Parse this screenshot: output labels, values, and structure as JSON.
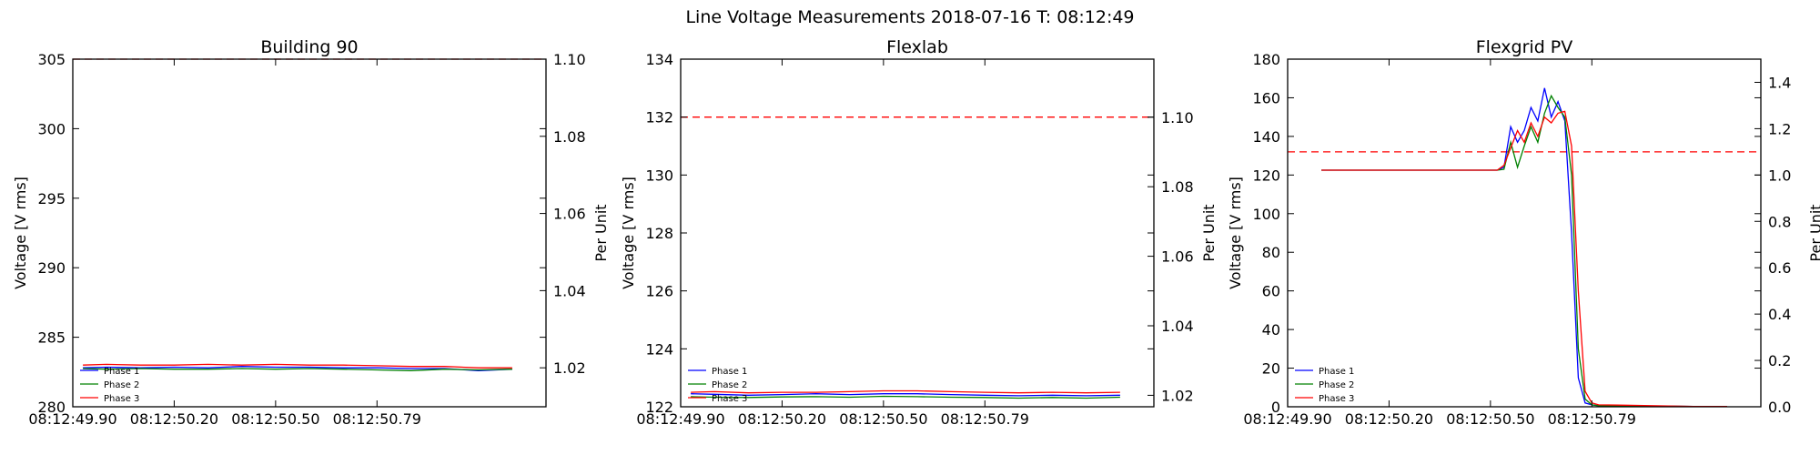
{
  "suptitle": "Line Voltage Measurements 2018-07-16 T: 08:12:49",
  "chart_data": [
    {
      "type": "line",
      "title": "Building 90",
      "xlabel": "",
      "ylabel": "Voltage [V rms]",
      "ylabel_right": "Per Unit",
      "x_tick_labels": [
        "08:12:49.90",
        "08:12:50.20",
        "08:12:50.50",
        "08:12:50.79"
      ],
      "xlim": [
        0,
        1.4
      ],
      "x_ticks": [
        0,
        0.3,
        0.6,
        0.9
      ],
      "ylim": [
        280,
        305
      ],
      "y_ticks": [
        280,
        285,
        290,
        295,
        300,
        305
      ],
      "ylim_right": [
        1.0099,
        1.1
      ],
      "y_ticks_right": [
        1.02,
        1.04,
        1.06,
        1.08,
        1.1
      ],
      "threshold": {
        "value": 305,
        "style": "dashed",
        "color": "#ff0000"
      },
      "legend": "lower-left",
      "series": [
        {
          "name": "Phase 1",
          "color": "#0000ff",
          "x": [
            0.03,
            0.1,
            0.2,
            0.3,
            0.4,
            0.5,
            0.6,
            0.7,
            0.8,
            0.9,
            1.0,
            1.1,
            1.2,
            1.3
          ],
          "y": [
            282.8,
            282.85,
            282.8,
            282.85,
            282.8,
            282.9,
            282.85,
            282.85,
            282.8,
            282.8,
            282.75,
            282.75,
            282.6,
            282.7
          ]
        },
        {
          "name": "Phase 2",
          "color": "#008000",
          "x": [
            0.03,
            0.1,
            0.2,
            0.3,
            0.4,
            0.5,
            0.6,
            0.7,
            0.8,
            0.9,
            1.0,
            1.1,
            1.2,
            1.3
          ],
          "y": [
            282.75,
            282.7,
            282.75,
            282.7,
            282.7,
            282.75,
            282.7,
            282.75,
            282.7,
            282.65,
            282.6,
            282.7,
            282.65,
            282.7
          ]
        },
        {
          "name": "Phase 3",
          "color": "#ff0000",
          "x": [
            0.03,
            0.1,
            0.2,
            0.3,
            0.4,
            0.5,
            0.6,
            0.7,
            0.8,
            0.9,
            1.0,
            1.1,
            1.2,
            1.3
          ],
          "y": [
            283.0,
            283.05,
            283.0,
            283.0,
            283.05,
            283.0,
            283.05,
            283.0,
            283.0,
            282.95,
            282.9,
            282.9,
            282.8,
            282.8
          ]
        }
      ]
    },
    {
      "type": "line",
      "title": "Flexlab",
      "xlabel": "",
      "ylabel": "Voltage [V rms]",
      "ylabel_right": "Per Unit",
      "x_tick_labels": [
        "08:12:49.90",
        "08:12:50.20",
        "08:12:50.50",
        "08:12:50.79"
      ],
      "xlim": [
        0,
        1.4
      ],
      "x_ticks": [
        0,
        0.3,
        0.6,
        0.9
      ],
      "ylim": [
        122,
        134
      ],
      "y_ticks": [
        122,
        124,
        126,
        128,
        130,
        132,
        134
      ],
      "ylim_right": [
        1.0167,
        1.1167
      ],
      "y_ticks_right": [
        1.02,
        1.04,
        1.06,
        1.08,
        1.1
      ],
      "threshold": {
        "value": 132,
        "style": "dashed",
        "color": "#ff0000"
      },
      "legend": "lower-left",
      "series": [
        {
          "name": "Phase 1",
          "color": "#0000ff",
          "x": [
            0.03,
            0.1,
            0.2,
            0.3,
            0.4,
            0.5,
            0.6,
            0.7,
            0.8,
            0.9,
            1.0,
            1.1,
            1.2,
            1.3
          ],
          "y": [
            122.45,
            122.43,
            122.4,
            122.42,
            122.45,
            122.42,
            122.45,
            122.45,
            122.42,
            122.4,
            122.38,
            122.4,
            122.38,
            122.4
          ]
        },
        {
          "name": "Phase 2",
          "color": "#008000",
          "x": [
            0.03,
            0.1,
            0.2,
            0.3,
            0.4,
            0.5,
            0.6,
            0.7,
            0.8,
            0.9,
            1.0,
            1.1,
            1.2,
            1.3
          ],
          "y": [
            122.35,
            122.33,
            122.32,
            122.34,
            122.35,
            122.33,
            122.36,
            122.35,
            122.33,
            122.32,
            122.3,
            122.32,
            122.3,
            122.33
          ]
        },
        {
          "name": "Phase 3",
          "color": "#ff0000",
          "x": [
            0.03,
            0.1,
            0.2,
            0.3,
            0.4,
            0.5,
            0.6,
            0.7,
            0.8,
            0.9,
            1.0,
            1.1,
            1.2,
            1.3
          ],
          "y": [
            122.5,
            122.52,
            122.48,
            122.5,
            122.5,
            122.52,
            122.55,
            122.55,
            122.52,
            122.5,
            122.48,
            122.5,
            122.48,
            122.5
          ]
        }
      ]
    },
    {
      "type": "line",
      "title": "Flexgrid PV",
      "xlabel": "",
      "ylabel": "Voltage [V rms]",
      "ylabel_right": "Per Unit",
      "x_tick_labels": [
        "08:12:49.90",
        "08:12:50.20",
        "08:12:50.50",
        "08:12:50.79"
      ],
      "xlim": [
        0,
        1.4
      ],
      "x_ticks": [
        0,
        0.3,
        0.6,
        0.9
      ],
      "ylim": [
        0,
        180
      ],
      "y_ticks": [
        0,
        20,
        40,
        60,
        80,
        100,
        120,
        140,
        160,
        180
      ],
      "ylim_right": [
        0,
        1.5
      ],
      "y_ticks_right": [
        0.0,
        0.2,
        0.4,
        0.6,
        0.8,
        1.0,
        1.2,
        1.4
      ],
      "threshold": {
        "value": 132,
        "style": "dashed",
        "color": "#ff0000"
      },
      "legend": "lower-left",
      "series": [
        {
          "name": "Phase 1",
          "color": "#0000ff",
          "x": [
            0.1,
            0.5,
            0.6,
            0.62,
            0.64,
            0.66,
            0.68,
            0.7,
            0.72,
            0.74,
            0.76,
            0.78,
            0.8,
            0.82,
            0.84,
            0.86,
            0.88,
            0.9,
            0.92,
            1.0,
            1.2,
            1.3
          ],
          "y": [
            122.5,
            122.5,
            122.5,
            122.5,
            124,
            145,
            137,
            143,
            155,
            148,
            165,
            150,
            158,
            148,
            90,
            15,
            2,
            1,
            0.5,
            0.5,
            0.2,
            0.2
          ]
        },
        {
          "name": "Phase 2",
          "color": "#008000",
          "x": [
            0.1,
            0.5,
            0.6,
            0.62,
            0.64,
            0.66,
            0.68,
            0.7,
            0.72,
            0.74,
            0.76,
            0.78,
            0.8,
            0.82,
            0.84,
            0.86,
            0.88,
            0.9,
            0.92,
            1.0,
            1.2,
            1.3
          ],
          "y": [
            122.5,
            122.5,
            122.5,
            122.5,
            123,
            137,
            124,
            135,
            145,
            137,
            152,
            161,
            155,
            150,
            120,
            30,
            4,
            1,
            0.5,
            0.5,
            0.2,
            0.2
          ]
        },
        {
          "name": "Phase 3",
          "color": "#ff0000",
          "x": [
            0.1,
            0.5,
            0.6,
            0.62,
            0.64,
            0.66,
            0.68,
            0.7,
            0.72,
            0.74,
            0.76,
            0.78,
            0.8,
            0.82,
            0.84,
            0.86,
            0.88,
            0.9,
            0.92,
            1.0,
            1.2,
            1.3
          ],
          "y": [
            122.5,
            122.5,
            122.5,
            122.5,
            125,
            134,
            143,
            137,
            147,
            140,
            150,
            147,
            152,
            153,
            135,
            60,
            8,
            2,
            1,
            0.8,
            0.2,
            0.2
          ]
        }
      ]
    }
  ]
}
